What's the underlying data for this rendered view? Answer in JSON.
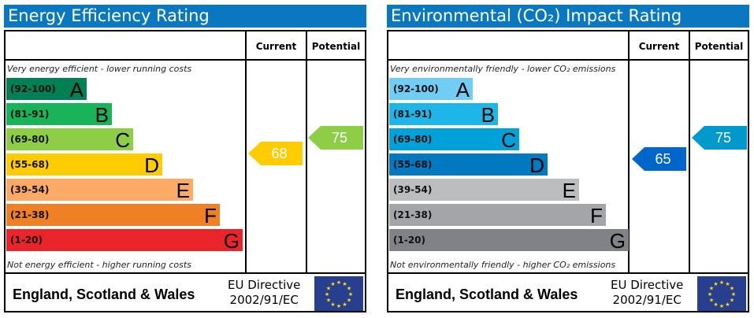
{
  "panels": [
    {
      "title": "Energy Efficiency Rating",
      "col_current": "Current",
      "col_potential": "Potential",
      "top_note": "Very energy efficient - lower running costs",
      "bottom_note": "Not energy efficient - higher running costs",
      "bands": [
        {
          "range": "(92-100)",
          "letter": "A",
          "color": "#008054"
        },
        {
          "range": "(81-91)",
          "letter": "B",
          "color": "#19b459"
        },
        {
          "range": "(69-80)",
          "letter": "C",
          "color": "#8dce46"
        },
        {
          "range": "(55-68)",
          "letter": "D",
          "color": "#ffcc00"
        },
        {
          "range": "(39-54)",
          "letter": "E",
          "color": "#fcaa65"
        },
        {
          "range": "(21-38)",
          "letter": "F",
          "color": "#ef8023"
        },
        {
          "range": "(1-20)",
          "letter": "G",
          "color": "#e9242a"
        }
      ],
      "current": {
        "value": "68",
        "band": "D",
        "color": "#ffcc00"
      },
      "potential": {
        "value": "75",
        "band": "C",
        "color": "#8dce46"
      },
      "country": "England, Scotland & Wales",
      "directive_line1": "EU Directive",
      "directive_line2": "2002/91/EC",
      "flag": "eu-flag-icon"
    },
    {
      "title": "Environmental (CO₂) Impact Rating",
      "col_current": "Current",
      "col_potential": "Potential",
      "top_note": "Very environmentally friendly - lower CO₂ emissions",
      "bottom_note": "Not environmentally friendly - higher CO₂ emissions",
      "bands": [
        {
          "range": "(92-100)",
          "letter": "A",
          "color": "#72cdf4"
        },
        {
          "range": "(81-91)",
          "letter": "B",
          "color": "#1eb6e8"
        },
        {
          "range": "(69-80)",
          "letter": "C",
          "color": "#00a0d8"
        },
        {
          "range": "(55-68)",
          "letter": "D",
          "color": "#0079c1"
        },
        {
          "range": "(39-54)",
          "letter": "E",
          "color": "#bbbdbf"
        },
        {
          "range": "(21-38)",
          "letter": "F",
          "color": "#a3a5a8"
        },
        {
          "range": "(1-20)",
          "letter": "G",
          "color": "#808285"
        }
      ],
      "current": {
        "value": "65",
        "band": "D",
        "color": "#0066cc"
      },
      "potential": {
        "value": "75",
        "band": "C",
        "color": "#0099cc"
      },
      "country": "England, Scotland & Wales",
      "directive_line1": "EU Directive",
      "directive_line2": "2002/91/EC",
      "flag": "eu-flag-icon"
    }
  ]
}
